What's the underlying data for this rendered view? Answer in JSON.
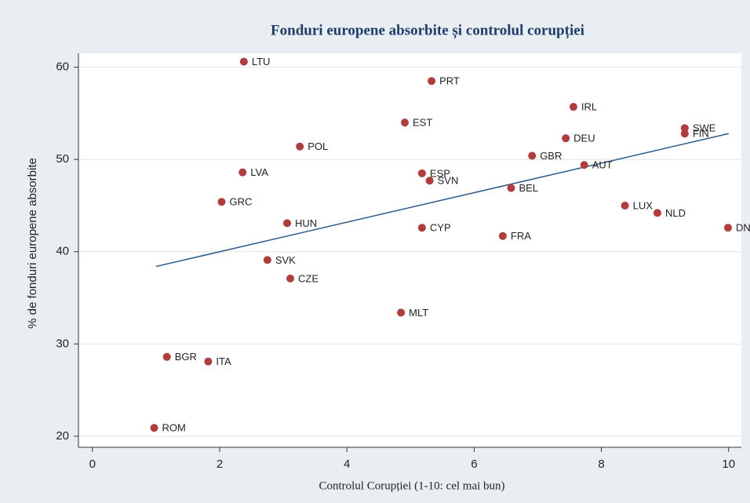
{
  "chart_data": {
    "type": "scatter",
    "title": "Fonduri europene absorbite și controlul corupției",
    "xlabel": "Controlul Corupției (1-10: cel mai bun)",
    "ylabel": "% de fonduri europene absorbite",
    "labels": [
      "LTU",
      "PRT",
      "IRL",
      "EST",
      "SWE",
      "FIN",
      "DEU",
      "POL",
      "GBR",
      "AUT",
      "LVA",
      "ESP",
      "SVN",
      "BEL",
      "GRC",
      "LUX",
      "NLD",
      "HUN",
      "CYP",
      "DNK",
      "FRA",
      "SVK",
      "CZE",
      "MLT",
      "BGR",
      "ITA",
      "ROM"
    ],
    "x": [
      2.38,
      5.33,
      7.56,
      4.91,
      9.31,
      9.31,
      7.44,
      3.26,
      6.91,
      7.73,
      2.36,
      5.18,
      5.3,
      6.58,
      2.03,
      8.37,
      8.88,
      3.06,
      5.18,
      9.99,
      6.45,
      2.75,
      3.11,
      4.85,
      1.17,
      1.82,
      0.97
    ],
    "y": [
      60.6,
      58.5,
      55.7,
      54.0,
      53.4,
      52.8,
      52.3,
      51.4,
      50.4,
      49.4,
      48.6,
      48.5,
      47.7,
      46.9,
      45.4,
      45.0,
      44.2,
      43.1,
      42.6,
      42.6,
      41.7,
      39.1,
      37.1,
      33.4,
      28.6,
      28.1,
      20.9
    ],
    "color": "#b23b3b",
    "trendline": {
      "x": [
        1,
        10
      ],
      "y": [
        38.4,
        52.8
      ],
      "color": "#2c5a8a"
    },
    "xlim": [
      -0.22,
      10.2
    ],
    "ylim": [
      18.8,
      61.5
    ],
    "xticks": [
      0,
      2,
      4,
      6,
      8,
      10
    ],
    "yticks": [
      20,
      30,
      40,
      50,
      60
    ],
    "grid": true
  }
}
